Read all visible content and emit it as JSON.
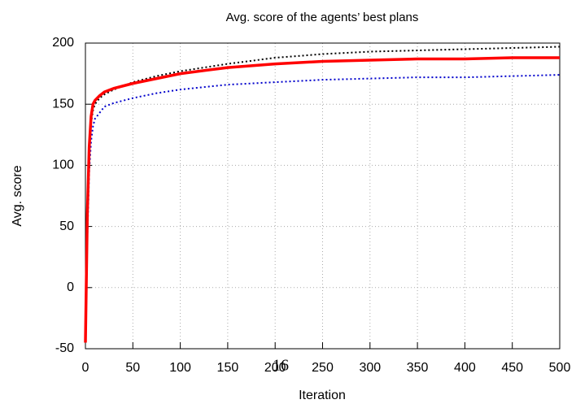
{
  "chart_data": {
    "type": "line",
    "title": "Avg. score of the agents’ best plans",
    "xlabel": "Iteration",
    "ylabel": "Avg. score",
    "annotations": [
      "16"
    ],
    "x": [
      0,
      2,
      4,
      6,
      8,
      10,
      15,
      20,
      30,
      50,
      75,
      100,
      150,
      200,
      250,
      300,
      350,
      400,
      450,
      500
    ],
    "series": [
      {
        "color": "#000000",
        "style": "dotted",
        "width": 2,
        "values": [
          -45,
          50,
          110,
          135,
          145,
          150,
          155,
          158,
          162,
          168,
          173,
          177,
          183,
          188,
          191,
          193,
          194,
          195,
          196,
          197
        ]
      },
      {
        "color": "#0000cc",
        "style": "dotted",
        "width": 2,
        "values": [
          -45,
          40,
          95,
          120,
          132,
          138,
          143,
          148,
          151,
          155,
          159,
          162,
          166,
          168,
          170,
          171,
          172,
          172,
          173,
          174
        ]
      },
      {
        "color": "#ff0000",
        "style": "solid",
        "width": 3.5,
        "values": [
          -45,
          60,
          115,
          140,
          150,
          153,
          157,
          160,
          163,
          167,
          171,
          175,
          180,
          183,
          185,
          186,
          187,
          187,
          188,
          188
        ]
      }
    ],
    "xlim": [
      0,
      500
    ],
    "xticks": [
      0,
      50,
      100,
      150,
      200,
      250,
      300,
      350,
      400,
      450,
      500
    ],
    "ylim": [
      -50,
      200
    ],
    "yticks": [
      -50,
      0,
      50,
      100,
      150,
      200
    ],
    "grid": true
  }
}
